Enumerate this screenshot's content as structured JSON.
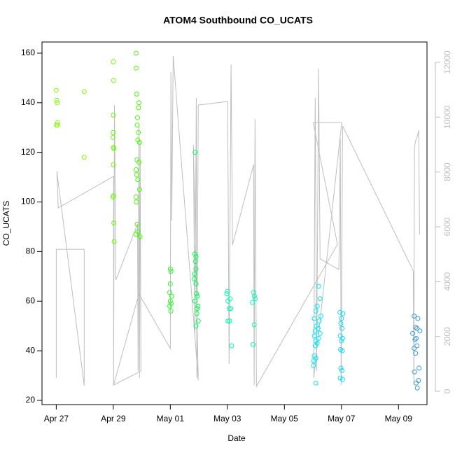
{
  "chart_data": {
    "type": "scatter",
    "title": "ATOM4 Southbound CO_UCATS",
    "xlabel": "Date",
    "ylabel": "CO_UCATS",
    "xlim": [
      26.5,
      40.0
    ],
    "ylim": [
      18.3,
      164.5
    ],
    "y2lim": [
      -485,
      12740
    ],
    "xticks": [
      {
        "value": 27,
        "label": "Apr 27"
      },
      {
        "value": 29,
        "label": "Apr 29"
      },
      {
        "value": 31,
        "label": "May 01"
      },
      {
        "value": 33,
        "label": "May 03"
      },
      {
        "value": 35,
        "label": "May 05"
      },
      {
        "value": 37,
        "label": "May 07"
      },
      {
        "value": 39,
        "label": "May 09"
      }
    ],
    "yticks": [
      20,
      40,
      60,
      80,
      100,
      120,
      140,
      160
    ],
    "y2ticks": [
      0,
      2000,
      4000,
      6000,
      8000,
      10000,
      12000
    ],
    "y2_color": "#bebebe",
    "series": [
      {
        "type": "line",
        "axis": "y2",
        "color": "#bebebe",
        "x": [
          27.0,
          27.0,
          27.98,
          27.98,
          27.02,
          27.07,
          29.01,
          29.01,
          29.04,
          29.09,
          29.85,
          29.87,
          29.9,
          29.92,
          29.94,
          29.97,
          29.01,
          29.9,
          31.0,
          31.02,
          31.05,
          31.1,
          31.98,
          31.81,
          31.86,
          31.91,
          31.93,
          31.98,
          33.01,
          33.06,
          33.13,
          33.18,
          33.92,
          33.94,
          33.97,
          34.02,
          36.86,
          36.01,
          37.01,
          36.03,
          36.08,
          36.13,
          36.2,
          36.25,
          36.91,
          36.96,
          36.99,
          37.04,
          39.52,
          39.54,
          39.56,
          39.61,
          39.66,
          39.71,
          39.74
        ],
        "values": [
          485,
          5180,
          5180,
          205,
          8020,
          6690,
          7840,
          255,
          10440,
          4060,
          6100,
          740,
          9680,
          485,
          9170,
          740,
          230,
          3550,
          1560,
          11640,
          6230,
          12230,
          410,
          8990,
          2020,
          10700,
          485,
          10440,
          10570,
          1000,
          11920,
          5340,
          8270,
          230,
          9930,
          180,
          5360,
          9800,
          9800,
          485,
          10700,
          740,
          11770,
          4830,
          4440,
          9220,
          230,
          9680,
          4390,
          230,
          8910,
          9170,
          9290,
          9520,
          5720
        ]
      },
      {
        "color": "#80ff00",
        "x": [
          27.0,
          27.02,
          27.03,
          27.05,
          27.01,
          27.04
        ],
        "values": [
          145,
          141,
          140,
          132,
          131,
          131
        ]
      },
      {
        "color": "#80ff00",
        "x": [
          27.98,
          27.98
        ],
        "values": [
          144.5,
          118
        ]
      },
      {
        "color": "#66ff00",
        "x": [
          29.0,
          29.01,
          29.0,
          29.0,
          28.99,
          29.01,
          29.02,
          29.0,
          29.01,
          28.99,
          29.02,
          29.03
        ],
        "values": [
          156.5,
          149,
          135,
          128,
          126,
          122,
          121.5,
          115,
          102.5,
          102,
          91.5,
          84
        ]
      },
      {
        "color": "#44ff00",
        "x": [
          29.8,
          29.8,
          29.82,
          29.88,
          29.9,
          29.85,
          29.84,
          29.88,
          29.86,
          29.92,
          29.83,
          29.9,
          29.8,
          29.82,
          29.86,
          29.92,
          29.8,
          29.81,
          29.84,
          29.86,
          29.8,
          29.94
        ],
        "values": [
          160,
          154,
          143.5,
          138,
          140,
          134,
          131,
          128,
          125,
          124,
          117,
          116,
          113,
          111,
          109,
          105,
          102,
          100,
          91,
          88,
          87,
          86
        ]
      },
      {
        "color": "#22ff22",
        "x": [
          31.0,
          31.02,
          31.0,
          30.98,
          31.05,
          31.0,
          31.03,
          30.98,
          31.02
        ],
        "values": [
          73,
          72,
          67,
          63.5,
          62,
          60,
          59,
          58,
          56
        ]
      },
      {
        "color": "#00ff50",
        "x": [
          31.87,
          31.86,
          31.9,
          31.88,
          31.9,
          31.85,
          31.84,
          31.9,
          31.92,
          31.95,
          31.86,
          31.97,
          31.94,
          31.93,
          31.98,
          31.9
        ],
        "values": [
          120,
          79,
          78,
          76,
          73,
          71,
          69,
          67,
          63,
          62,
          60,
          58,
          57,
          55,
          52,
          50
        ]
      },
      {
        "color": "#00ffb0",
        "x": [
          33.0,
          32.98,
          33.1,
          33.02,
          33.06,
          33.12,
          33.02,
          33.08,
          33.15
        ],
        "values": [
          64,
          63,
          61,
          60,
          57,
          57,
          52,
          52,
          42
        ]
      },
      {
        "color": "#00ffc0",
        "x": [
          33.92,
          33.95,
          33.98,
          33.88,
          33.94,
          33.9
        ],
        "values": [
          63.5,
          62,
          61,
          59.5,
          50.5,
          42.5
        ]
      },
      {
        "color": "#00e8ff",
        "x": [
          36.2,
          36.25,
          36.15,
          36.1,
          36.28,
          36.05,
          36.22,
          36.12,
          36.18,
          36.08,
          36.25,
          36.05,
          36.2,
          36.1,
          36.15,
          36.08,
          36.05,
          36.1,
          36.03,
          36.02,
          36.1
        ],
        "values": [
          66,
          61,
          58,
          56,
          54,
          53,
          52,
          50,
          49,
          48,
          47,
          46,
          45,
          44,
          43,
          42,
          38,
          37,
          36,
          34,
          27
        ]
      },
      {
        "color": "#10d8ff",
        "x": [
          36.95,
          37.05,
          37.0,
          36.98,
          37.02,
          36.96,
          37.04,
          37.0,
          36.97,
          37.03,
          36.98,
          37.02,
          36.96,
          37.04
        ],
        "values": [
          55.5,
          55,
          53,
          51,
          49,
          46,
          45,
          44,
          40.5,
          40,
          33,
          32,
          29,
          28.5
        ]
      },
      {
        "color": "#3a9ae0",
        "x": [
          39.55,
          39.68,
          39.6,
          39.65,
          39.75,
          39.5,
          39.62,
          39.58,
          39.65,
          39.55,
          39.6,
          39.72,
          39.56,
          39.7,
          39.62,
          39.66
        ],
        "values": [
          54,
          53,
          49.5,
          49,
          48,
          47,
          45,
          44.5,
          42,
          41,
          39,
          33,
          31.5,
          28,
          27,
          25
        ]
      }
    ]
  }
}
